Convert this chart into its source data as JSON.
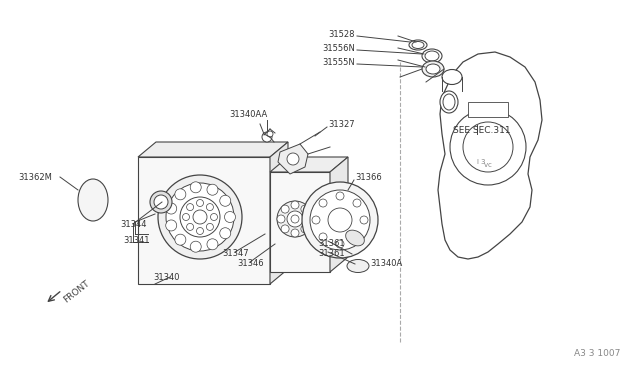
{
  "bg_color": "#ffffff",
  "line_color": "#444444",
  "text_color": "#333333",
  "label_fontsize": 6.0,
  "fig_ref": "A3 3 1007",
  "see_sec": "SEE SEC.311",
  "front_label": "FRONT"
}
